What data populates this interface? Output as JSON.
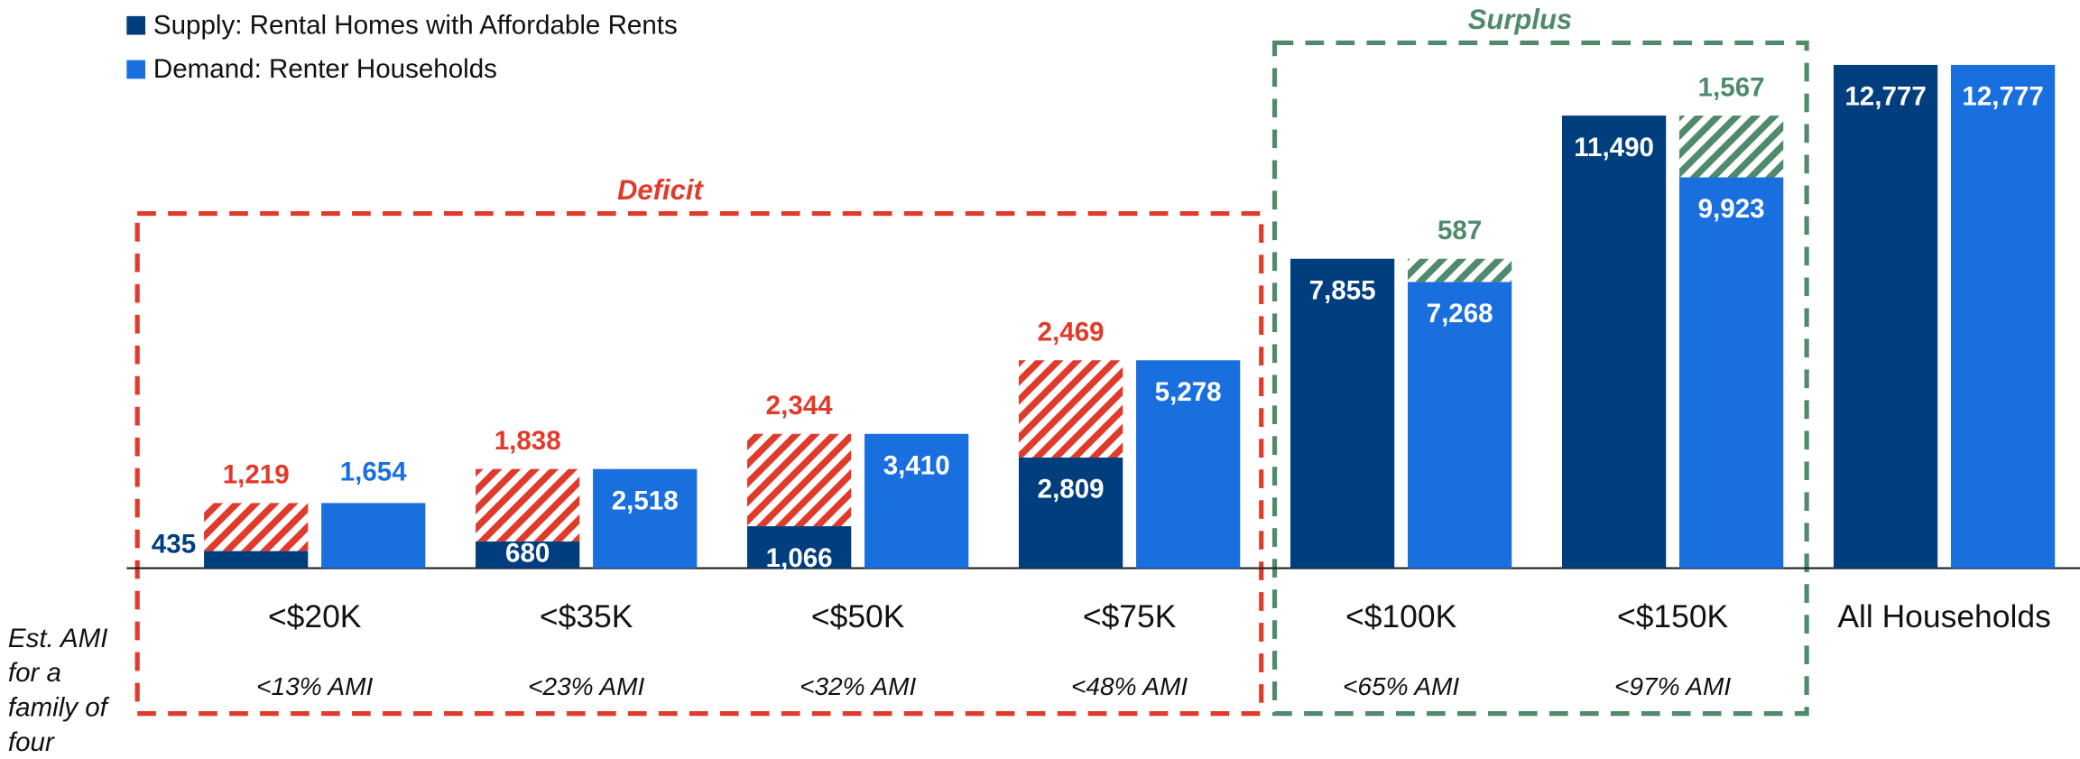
{
  "chart_data": {
    "type": "bar",
    "categories": [
      "<$20K",
      "<$35K",
      "<$50K",
      "<$75K",
      "<$100K",
      "<$150K",
      "All Households"
    ],
    "sublabels": [
      "<13% AMI",
      "<23% AMI",
      "<32% AMI",
      "<48% AMI",
      "<65% AMI",
      "<97% AMI",
      null
    ],
    "series": [
      {
        "name": "Supply: Rental Homes with Affordable Rents",
        "color": "#003e7e",
        "values": [
          435,
          680,
          1066,
          2809,
          7855,
          11490,
          12777
        ],
        "value_labels": [
          "435",
          "680",
          "1,066",
          "2,809",
          "7,855",
          "11,490",
          "12,777"
        ]
      },
      {
        "name": "Demand: Renter Households",
        "color": "#1a6fdf",
        "values": [
          1654,
          2518,
          3410,
          5278,
          7268,
          9923,
          12777
        ],
        "value_labels": [
          "1,654",
          "2,518",
          "3,410",
          "5,278",
          "7,268",
          "9,923",
          "12,777"
        ]
      }
    ],
    "deficit": {
      "label": "Deficit",
      "color": "#e03a2b",
      "values": [
        1219,
        1838,
        2344,
        2469,
        null,
        null,
        null
      ],
      "value_labels": [
        "1,219",
        "1,838",
        "2,344",
        "2,469",
        null,
        null,
        null
      ]
    },
    "surplus": {
      "label": "Surplus",
      "color": "#4f8a6b",
      "values": [
        null,
        null,
        null,
        null,
        587,
        1567,
        null
      ],
      "value_labels": [
        null,
        null,
        null,
        null,
        "587",
        "1,567",
        null
      ]
    },
    "note": "Est. AMI for a family of four",
    "ylim": [
      0,
      13000
    ]
  }
}
